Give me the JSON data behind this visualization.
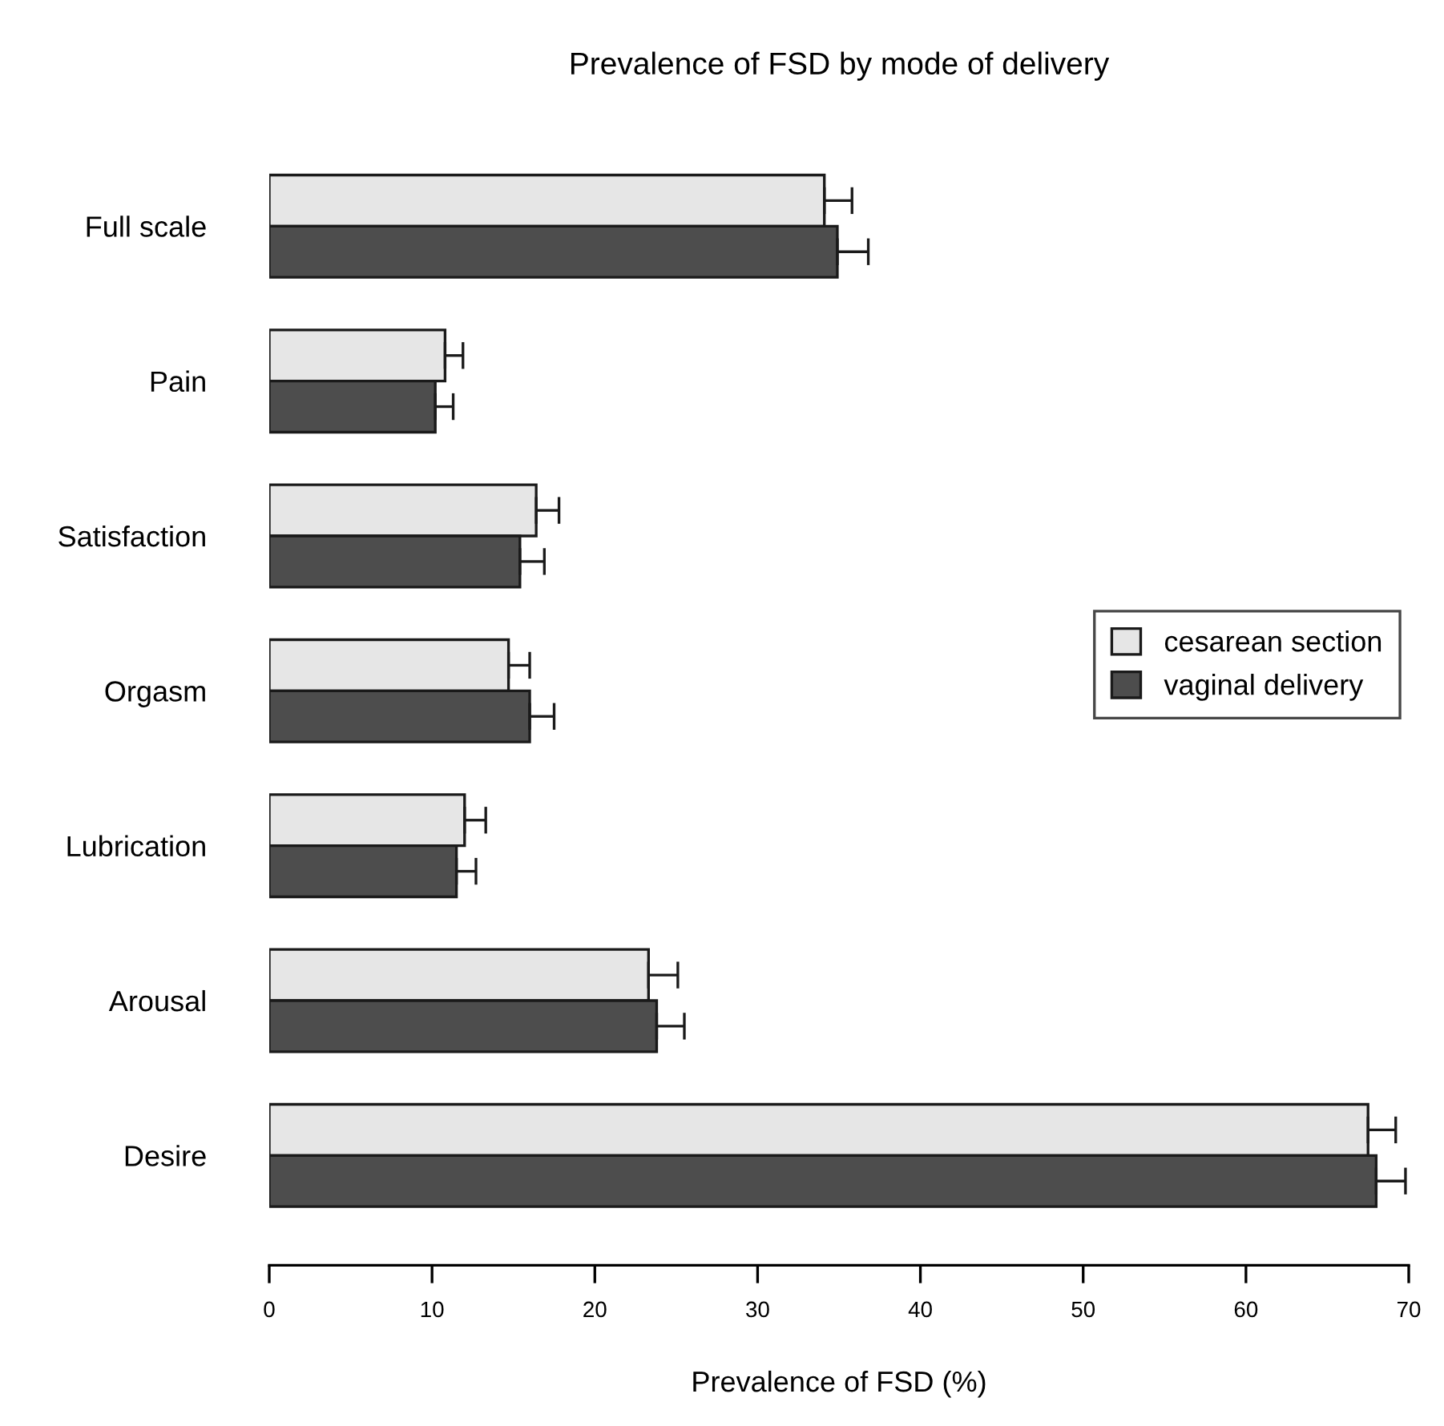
{
  "chart_data": {
    "type": "bar",
    "orientation": "horizontal",
    "title": "Prevalence of FSD by mode of delivery",
    "xlabel": "Prevalence of FSD (%)",
    "categories": [
      "Full scale",
      "Pain",
      "Satisfaction",
      "Orgasm",
      "Lubrication",
      "Arousal",
      "Desire"
    ],
    "series": [
      {
        "name": "cesarean section",
        "color": "#e6e6e6",
        "values": [
          34.1,
          10.8,
          16.4,
          14.7,
          12.0,
          23.3,
          67.5
        ],
        "errors": [
          [
            34.1,
            35.8
          ],
          [
            10.8,
            11.9
          ],
          [
            16.4,
            17.8
          ],
          [
            14.7,
            16.0
          ],
          [
            12.0,
            13.3
          ],
          [
            23.3,
            25.1
          ],
          [
            67.5,
            69.2
          ]
        ]
      },
      {
        "name": "vaginal delivery",
        "color": "#4d4d4d",
        "values": [
          34.9,
          10.2,
          15.4,
          16.0,
          11.5,
          23.8,
          68.0
        ],
        "errors": [
          [
            34.9,
            36.8
          ],
          [
            10.2,
            11.3
          ],
          [
            15.4,
            16.9
          ],
          [
            16.0,
            17.5
          ],
          [
            11.5,
            12.7
          ],
          [
            23.8,
            25.5
          ],
          [
            68.0,
            69.8
          ]
        ]
      }
    ],
    "xlim": [
      0,
      70
    ],
    "xticks": [
      0,
      10,
      20,
      30,
      40,
      50,
      60,
      70
    ],
    "grid": false,
    "legend": "right"
  }
}
